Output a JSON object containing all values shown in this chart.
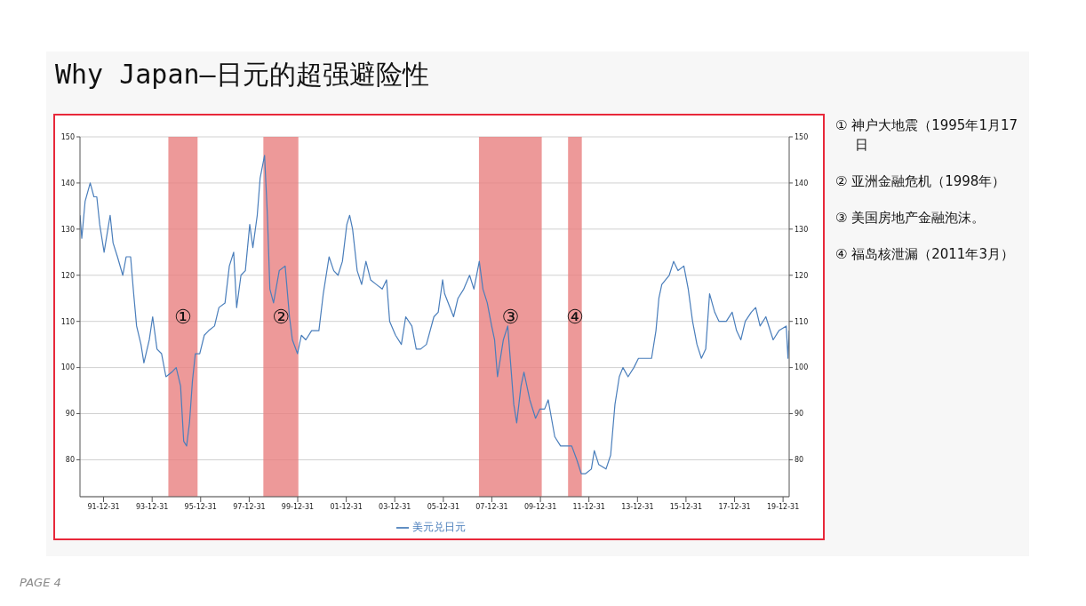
{
  "chart_data": {
    "type": "line",
    "title": "Why Japan—日元的超强避险性",
    "x": [
      "1991-01-11",
      "1991-02-06",
      "1991-03-28",
      "1991-06-13",
      "1991-08-08",
      "1991-09-20",
      "1991-11-03",
      "1992-01-08",
      "1992-04-08",
      "1992-05-22",
      "1992-07-27",
      "1992-10-15",
      "1992-12-05",
      "1993-02-10",
      "1993-03-28",
      "1993-05-11",
      "1993-07-16",
      "1993-08-29",
      "1993-11-18",
      "1994-01-08",
      "1994-03-14",
      "1994-05-22",
      "1994-07-27",
      "1994-10-23",
      "1994-12-28",
      "1995-03-04",
      "1995-04-20",
      "1995-06-03",
      "1995-07-16",
      "1995-08-29",
      "1995-10-12",
      "1995-12-17",
      "1996-02-24",
      "1996-05-01",
      "1996-07-27",
      "1996-10-01",
      "1997-01-01",
      "1997-03-07",
      "1997-05-11",
      "1997-06-25",
      "1997-08-29",
      "1997-11-03",
      "1998-01-08",
      "1998-02-24",
      "1998-05-01",
      "1998-06-13",
      "1998-08-19",
      "1998-10-01",
      "1998-11-07",
      "1999-01-01",
      "1999-03-28",
      "1999-06-25",
      "1999-08-29",
      "1999-10-12",
      "1999-12-28",
      "2000-02-24",
      "2000-05-01",
      "2000-07-27",
      "2000-11-14",
      "2001-01-19",
      "2001-04-16",
      "2001-06-25",
      "2001-08-29",
      "2001-11-03",
      "2002-01-08",
      "2002-02-20",
      "2002-04-05",
      "2002-06-13",
      "2002-08-19",
      "2002-10-23",
      "2003-01-01",
      "2003-03-28",
      "2003-06-25",
      "2003-08-29",
      "2003-10-15",
      "2004-01-11",
      "2004-04-08",
      "2004-06-13",
      "2004-09-13",
      "2004-11-18",
      "2005-01-23",
      "2005-04-20",
      "2005-08-11",
      "2005-10-15",
      "2005-12-20",
      "2006-01-19",
      "2006-06-03",
      "2006-08-08",
      "2006-11-03",
      "2007-01-30",
      "2007-04-05",
      "2007-06-25",
      "2007-08-19",
      "2007-10-23",
      "2007-12-28",
      "2008-02-10",
      "2008-03-25",
      "2008-06-21",
      "2008-08-26",
      "2008-11-25",
      "2009-01-08",
      "2009-03-14",
      "2009-04-27",
      "2009-07-24",
      "2009-10-19",
      "2009-12-24",
      "2010-03-04",
      "2010-04-27",
      "2010-08-04",
      "2010-10-30",
      "2011-01-26",
      "2011-04-16",
      "2011-07-02",
      "2011-09-06",
      "2011-11-11",
      "2012-02-06",
      "2012-03-21",
      "2012-05-26",
      "2012-09-13",
      "2012-11-22",
      "2013-01-26",
      "2013-04-01",
      "2013-05-26",
      "2013-08-11",
      "2013-11-07",
      "2014-01-15",
      "2014-04-12",
      "2014-07-31",
      "2014-10-05",
      "2014-11-18",
      "2015-01-01",
      "2015-04-23",
      "2015-06-28",
      "2015-09-02",
      "2015-11-29",
      "2016-02-03",
      "2016-04-08",
      "2016-06-13",
      "2016-08-19",
      "2016-10-23",
      "2016-12-20",
      "2017-03-07",
      "2017-05-11",
      "2017-08-29",
      "2017-11-25",
      "2018-01-30",
      "2018-04-05",
      "2018-06-10",
      "2018-09-09",
      "2018-11-14",
      "2019-01-19",
      "2019-04-16",
      "2019-08-04",
      "2019-10-30",
      "2020-02-17",
      "2020-03-14",
      "2020-04-01"
    ],
    "series": [
      {
        "name": "美元兑日元",
        "color": "#4a7ebb",
        "values": [
          133,
          128,
          136,
          140,
          137,
          137,
          131,
          125,
          133,
          127,
          124,
          120,
          124,
          124,
          116,
          109,
          105,
          101,
          106,
          111,
          104,
          103,
          98,
          99,
          100,
          96,
          84,
          83,
          88,
          97,
          103,
          103,
          107,
          108,
          109,
          113,
          114,
          122,
          125,
          113,
          120,
          121,
          131,
          126,
          133,
          141,
          146,
          133,
          117,
          114,
          121,
          122,
          111,
          106,
          103,
          107,
          106,
          108,
          108,
          116,
          124,
          121,
          120,
          123,
          131,
          133,
          130,
          121,
          118,
          123,
          119,
          118,
          117,
          119,
          110,
          107,
          105,
          111,
          109,
          104,
          104,
          105,
          111,
          112,
          119,
          116,
          111,
          115,
          117,
          120,
          117,
          123,
          117,
          114,
          109,
          106,
          98,
          106,
          109,
          92,
          88,
          96,
          99,
          93,
          89,
          91,
          91,
          93,
          85,
          83,
          83,
          83,
          80,
          77,
          77,
          78,
          82,
          79,
          78,
          81,
          92,
          98,
          100,
          98,
          100,
          102,
          102,
          102,
          108,
          115,
          118,
          120,
          123,
          121,
          122,
          117,
          110,
          105,
          102,
          104,
          116,
          112,
          110,
          110,
          112,
          108,
          106,
          110,
          112,
          113,
          109,
          111,
          106,
          108,
          109,
          102,
          108
        ]
      }
    ],
    "xlim": [
      "1991-01-10",
      "2020-04-01"
    ],
    "xticks": [
      {
        "value": "1991-12-31",
        "label": "91-12-31"
      },
      {
        "value": "1993-12-31",
        "label": "93-12-31"
      },
      {
        "value": "1995-12-31",
        "label": "95-12-31"
      },
      {
        "value": "1997-12-31",
        "label": "97-12-31"
      },
      {
        "value": "1999-12-31",
        "label": "99-12-31"
      },
      {
        "value": "2001-12-31",
        "label": "01-12-31"
      },
      {
        "value": "2003-12-31",
        "label": "03-12-31"
      },
      {
        "value": "2005-12-31",
        "label": "05-12-31"
      },
      {
        "value": "2007-12-31",
        "label": "07-12-31"
      },
      {
        "value": "2009-12-31",
        "label": "09-12-31"
      },
      {
        "value": "2011-12-31",
        "label": "11-12-31"
      },
      {
        "value": "2013-12-31",
        "label": "13-12-31"
      },
      {
        "value": "2015-12-31",
        "label": "15-12-31"
      },
      {
        "value": "2017-12-31",
        "label": "17-12-31"
      },
      {
        "value": "2019-12-31",
        "label": "19-12-31"
      }
    ],
    "ylim": [
      72,
      150
    ],
    "yticks": [
      80,
      90,
      100,
      110,
      120,
      130,
      140,
      150
    ],
    "y2lim": [
      72,
      150
    ],
    "y2ticks": [
      80,
      90,
      100,
      110,
      120,
      130,
      140,
      150
    ],
    "grid": "y",
    "legend": "bottom",
    "marker": "none",
    "line_style": "solid",
    "bands": [
      {
        "axis": "x",
        "from": "1994-09-01",
        "to": "1995-11-15",
        "label": "①",
        "color": "#e98080"
      },
      {
        "axis": "x",
        "from": "1998-08-01",
        "to": "2000-01-10",
        "label": "②",
        "color": "#e98080"
      },
      {
        "axis": "x",
        "from": "2007-06-20",
        "to": "2010-01-20",
        "label": "③",
        "color": "#e98080"
      },
      {
        "axis": "x",
        "from": "2011-02-20",
        "to": "2011-09-15",
        "label": "④",
        "color": "#e98080"
      }
    ],
    "annotations": [
      "① 神户大地震（1995年1月17日",
      "② 亚洲金融危机（1998年）",
      "③ 美国房地产金融泡沫。",
      "④ 福岛核泄漏（2011年3月）",
      "PAGE 4"
    ]
  }
}
